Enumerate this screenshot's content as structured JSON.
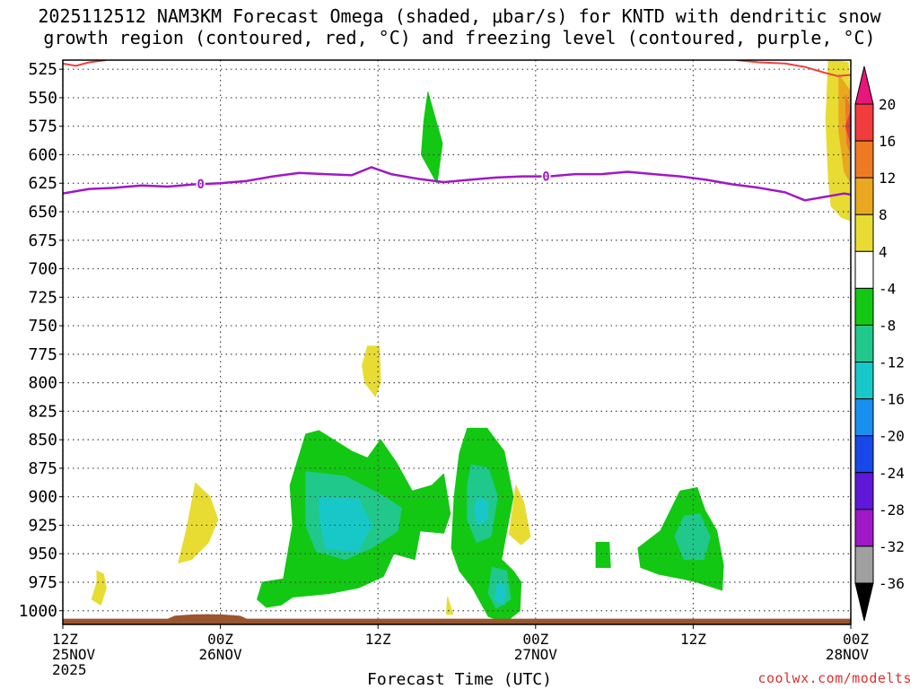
{
  "chart_data": {
    "type": "time-height",
    "title_line1": "2025112512 NAM3KM Forecast Omega (shaded, μbar/s) for KNTD with dendritic snow",
    "title_line2": "growth region (contoured, red, °C) and freezing level (contoured, purple, °C)",
    "xlabel": "Forecast Time (UTC)",
    "credit": "coolwx.com/modelts",
    "xlim_hours": [
      0,
      60
    ],
    "x_ticks": [
      {
        "hour": 0,
        "lines": [
          "12Z",
          "25NOV",
          "2025"
        ]
      },
      {
        "hour": 12,
        "lines": [
          "00Z",
          "26NOV"
        ]
      },
      {
        "hour": 24,
        "lines": [
          "12Z"
        ]
      },
      {
        "hour": 36,
        "lines": [
          "00Z",
          "27NOV"
        ]
      },
      {
        "hour": 48,
        "lines": [
          "12Z"
        ]
      },
      {
        "hour": 60,
        "lines": [
          "00Z",
          "28NOV"
        ]
      }
    ],
    "ylim_mb": [
      517,
      1012
    ],
    "y_ticks": [
      525,
      550,
      575,
      600,
      625,
      650,
      675,
      700,
      725,
      750,
      775,
      800,
      825,
      850,
      875,
      900,
      925,
      950,
      975,
      1000
    ],
    "colorbar": {
      "labels": [
        "20",
        "16",
        "12",
        "8",
        "4",
        "-4",
        "-8",
        "-12",
        "-16",
        "-20",
        "-24",
        "-28",
        "-32",
        "-36"
      ],
      "colors": [
        "#e8157a",
        "#f03c3c",
        "#f07a24",
        "#e8a820",
        "#e8dc32",
        "#ffffff",
        "#12c812",
        "#20c88c",
        "#18c8c8",
        "#1890f0",
        "#1848e8",
        "#6018d8",
        "#a018c8",
        "#a0a0a0",
        "#000000"
      ]
    },
    "freezing_level": {
      "label": "0",
      "label_hours": [
        10.5,
        36.8
      ],
      "points": [
        [
          0,
          634
        ],
        [
          2,
          630
        ],
        [
          4,
          629
        ],
        [
          6,
          627
        ],
        [
          8,
          628
        ],
        [
          10,
          626
        ],
        [
          12,
          625
        ],
        [
          14,
          623
        ],
        [
          16,
          619
        ],
        [
          18,
          616
        ],
        [
          20,
          617
        ],
        [
          22,
          618
        ],
        [
          23.5,
          611
        ],
        [
          25,
          617
        ],
        [
          27,
          621
        ],
        [
          29,
          624
        ],
        [
          31,
          622
        ],
        [
          33,
          620
        ],
        [
          35,
          619
        ],
        [
          37,
          619
        ],
        [
          39,
          617
        ],
        [
          41,
          617
        ],
        [
          43,
          615
        ],
        [
          45,
          617
        ],
        [
          47,
          619
        ],
        [
          49,
          622
        ],
        [
          51,
          626
        ],
        [
          53,
          629
        ],
        [
          55,
          633
        ],
        [
          56.5,
          640
        ],
        [
          58,
          637
        ],
        [
          59.5,
          634
        ],
        [
          60,
          635
        ]
      ]
    },
    "dgz_contour_top": [
      [
        0,
        520
      ],
      [
        1,
        522
      ],
      [
        2,
        519
      ],
      [
        3.3,
        517
      ]
    ],
    "dgz_contour_right": [
      [
        51.3,
        517
      ],
      [
        53,
        519
      ],
      [
        55,
        520
      ],
      [
        56.5,
        523
      ],
      [
        58,
        528
      ],
      [
        59,
        531
      ],
      [
        60,
        530
      ]
    ],
    "omega_regions": [
      {
        "value": 6,
        "color": "#e8dc32",
        "points": [
          [
            58.3,
            517
          ],
          [
            59.8,
            519
          ],
          [
            60,
            560
          ],
          [
            60,
            658
          ],
          [
            59.3,
            655
          ],
          [
            58.5,
            645
          ],
          [
            58.3,
            620
          ],
          [
            58.1,
            570
          ]
        ]
      },
      {
        "value": 10,
        "color": "#e8a820",
        "points": [
          [
            59.1,
            530
          ],
          [
            60,
            545
          ],
          [
            60,
            625
          ],
          [
            59.5,
            615
          ],
          [
            59.1,
            580
          ]
        ]
      },
      {
        "value": 14,
        "color": "#f07a24",
        "points": [
          [
            59.6,
            548
          ],
          [
            60,
            560
          ],
          [
            60,
            600
          ],
          [
            59.7,
            590
          ]
        ]
      },
      {
        "value": 18,
        "color": "#f03c3c",
        "points": [
          [
            60,
            562
          ],
          [
            59.6,
            575
          ],
          [
            60,
            590
          ]
        ]
      },
      {
        "value": -6,
        "color": "#12c812",
        "points": [
          [
            27.8,
            545
          ],
          [
            28.9,
            590
          ],
          [
            28.5,
            625
          ],
          [
            27.3,
            600
          ],
          [
            27.5,
            570
          ]
        ]
      },
      {
        "value": 6,
        "color": "#e8dc32",
        "points": [
          [
            23.2,
            768
          ],
          [
            24.1,
            768
          ],
          [
            24.2,
            800
          ],
          [
            23.8,
            812
          ],
          [
            23,
            800
          ],
          [
            22.8,
            785
          ]
        ]
      },
      {
        "value": 6,
        "color": "#e8dc32",
        "points": [
          [
            10.1,
            888
          ],
          [
            11.2,
            900
          ],
          [
            11.8,
            920
          ],
          [
            11.1,
            940
          ],
          [
            9.8,
            955
          ],
          [
            8.8,
            958
          ],
          [
            9.4,
            930
          ]
        ]
      },
      {
        "value": 6,
        "color": "#e8dc32",
        "points": [
          [
            2.6,
            965
          ],
          [
            3.1,
            968
          ],
          [
            3.3,
            980
          ],
          [
            2.9,
            995
          ],
          [
            2.2,
            990
          ],
          [
            2.6,
            975
          ]
        ]
      },
      {
        "value": 6,
        "color": "#e8dc32",
        "points": [
          [
            34.5,
            890
          ],
          [
            35.1,
            905
          ],
          [
            35.6,
            935
          ],
          [
            34.9,
            942
          ],
          [
            34,
            933
          ]
        ]
      },
      {
        "value": 6,
        "color": "#e8dc32",
        "points": [
          [
            29.3,
            988
          ],
          [
            29.7,
            1003
          ],
          [
            29.2,
            1003
          ]
        ]
      },
      {
        "value": -6,
        "color": "#12c812",
        "points": [
          [
            18.5,
            845
          ],
          [
            19.5,
            842
          ],
          [
            20.6,
            850
          ],
          [
            22,
            860
          ],
          [
            23.2,
            866
          ],
          [
            24.2,
            850
          ],
          [
            25.4,
            870
          ],
          [
            26.6,
            895
          ],
          [
            28.1,
            890
          ],
          [
            29,
            880
          ],
          [
            29.5,
            915
          ],
          [
            29,
            932
          ],
          [
            27.2,
            930
          ],
          [
            26.8,
            955
          ],
          [
            25.2,
            950
          ],
          [
            24.4,
            970
          ],
          [
            22.5,
            980
          ],
          [
            20.2,
            985
          ],
          [
            17.5,
            988
          ],
          [
            16.6,
            995
          ],
          [
            15.5,
            997
          ],
          [
            14.8,
            990
          ],
          [
            15.2,
            975
          ],
          [
            16.8,
            972
          ],
          [
            17.5,
            925
          ],
          [
            17.3,
            890
          ]
        ]
      },
      {
        "value": -10,
        "color": "#20c88c",
        "points": [
          [
            18.5,
            878
          ],
          [
            21.5,
            882
          ],
          [
            24.5,
            900
          ],
          [
            25.8,
            910
          ],
          [
            25.5,
            930
          ],
          [
            23.5,
            945
          ],
          [
            21.5,
            955
          ],
          [
            19.3,
            948
          ],
          [
            18.5,
            925
          ]
        ]
      },
      {
        "value": -14,
        "color": "#18c8c8",
        "points": [
          [
            19.5,
            900
          ],
          [
            22.5,
            902
          ],
          [
            23.5,
            925
          ],
          [
            22.5,
            948
          ],
          [
            20,
            945
          ],
          [
            19.6,
            922
          ]
        ]
      },
      {
        "value": -6,
        "color": "#12c812",
        "points": [
          [
            30.8,
            840
          ],
          [
            32.3,
            840
          ],
          [
            33.6,
            860
          ],
          [
            34.3,
            900
          ],
          [
            33.8,
            930
          ],
          [
            33.4,
            955
          ],
          [
            34.3,
            965
          ],
          [
            34.9,
            975
          ],
          [
            34.8,
            1000
          ],
          [
            33.7,
            1010
          ],
          [
            32.4,
            1005
          ],
          [
            31.2,
            980
          ],
          [
            30.2,
            965
          ],
          [
            29.6,
            945
          ],
          [
            29.8,
            900
          ],
          [
            30.2,
            862
          ]
        ]
      },
      {
        "value": -10,
        "color": "#20c88c",
        "points": [
          [
            31.1,
            872
          ],
          [
            32.4,
            875
          ],
          [
            33.1,
            900
          ],
          [
            32.6,
            935
          ],
          [
            31.5,
            940
          ],
          [
            30.8,
            920
          ],
          [
            30.8,
            890
          ]
        ]
      },
      {
        "value": -14,
        "color": "#18c8c8",
        "points": [
          [
            31.6,
            900
          ],
          [
            32.4,
            905
          ],
          [
            32.3,
            920
          ],
          [
            31.6,
            925
          ],
          [
            31.3,
            912
          ]
        ]
      },
      {
        "value": -10,
        "color": "#20c88c",
        "points": [
          [
            32.7,
            962
          ],
          [
            33.8,
            965
          ],
          [
            34.1,
            990
          ],
          [
            33,
            998
          ],
          [
            32.4,
            985
          ]
        ]
      },
      {
        "value": -14,
        "color": "#18c8c8",
        "points": [
          [
            33.1,
            975
          ],
          [
            33.7,
            978
          ],
          [
            33.6,
            995
          ],
          [
            32.9,
            990
          ]
        ]
      },
      {
        "value": -6,
        "color": "#12c812",
        "points": [
          [
            40.6,
            940
          ],
          [
            41.6,
            940
          ],
          [
            41.7,
            962
          ],
          [
            40.6,
            962
          ]
        ]
      },
      {
        "value": -6,
        "color": "#12c812",
        "points": [
          [
            47,
            895
          ],
          [
            48.3,
            892
          ],
          [
            48.9,
            912
          ],
          [
            49.8,
            930
          ],
          [
            50.3,
            960
          ],
          [
            50.2,
            982
          ],
          [
            48.3,
            975
          ],
          [
            47.2,
            972
          ],
          [
            45.4,
            968
          ],
          [
            44,
            962
          ],
          [
            43.8,
            945
          ],
          [
            45.5,
            930
          ]
        ]
      },
      {
        "value": -10,
        "color": "#20c88c",
        "points": [
          [
            47.3,
            917
          ],
          [
            48.5,
            915
          ],
          [
            49.3,
            935
          ],
          [
            48.8,
            955
          ],
          [
            47.3,
            955
          ],
          [
            46.6,
            935
          ]
        ]
      }
    ]
  }
}
